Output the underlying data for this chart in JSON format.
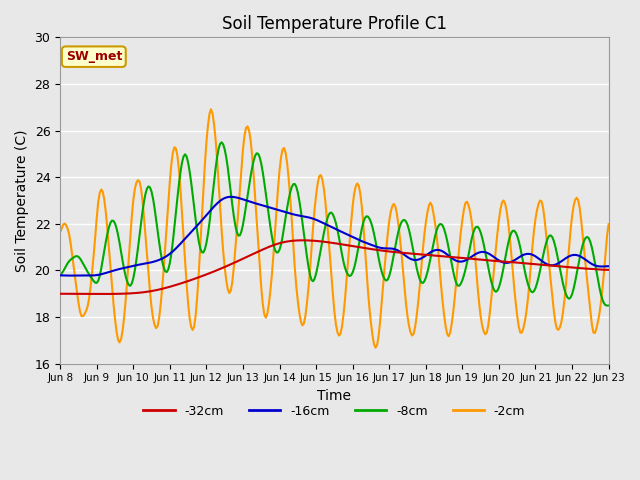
{
  "title": "Soil Temperature Profile C1",
  "xlabel": "Time",
  "ylabel": "Soil Temperature (C)",
  "ylim": [
    16,
    30
  ],
  "annotation_text": "SW_met",
  "annotation_bg": "#ffffcc",
  "annotation_border": "#cc9900",
  "annotation_color": "#990000",
  "plot_bg": "#e8e8e8",
  "fig_bg": "#e8e8e8",
  "legend_labels": [
    "-32cm",
    "-16cm",
    "-8cm",
    "-2cm"
  ],
  "legend_colors": [
    "#cc0000",
    "#0000cc",
    "#00aa00",
    "#ff9900"
  ],
  "line_width": 1.5,
  "tick_labels": [
    "Jun 8",
    "Jun 9",
    "Jun 10",
    "Jun 11",
    "Jun 12",
    "Jun 13",
    "Jun 14",
    "Jun 15",
    "Jun 16",
    "Jun 17",
    "Jun 18",
    "Jun 19",
    "Jun 20",
    "Jun 21",
    "Jun 22",
    "Jun 23"
  ],
  "n_points": 361,
  "grid_color": "#ffffff",
  "yticks": [
    16,
    18,
    20,
    22,
    24,
    26,
    28,
    30
  ]
}
